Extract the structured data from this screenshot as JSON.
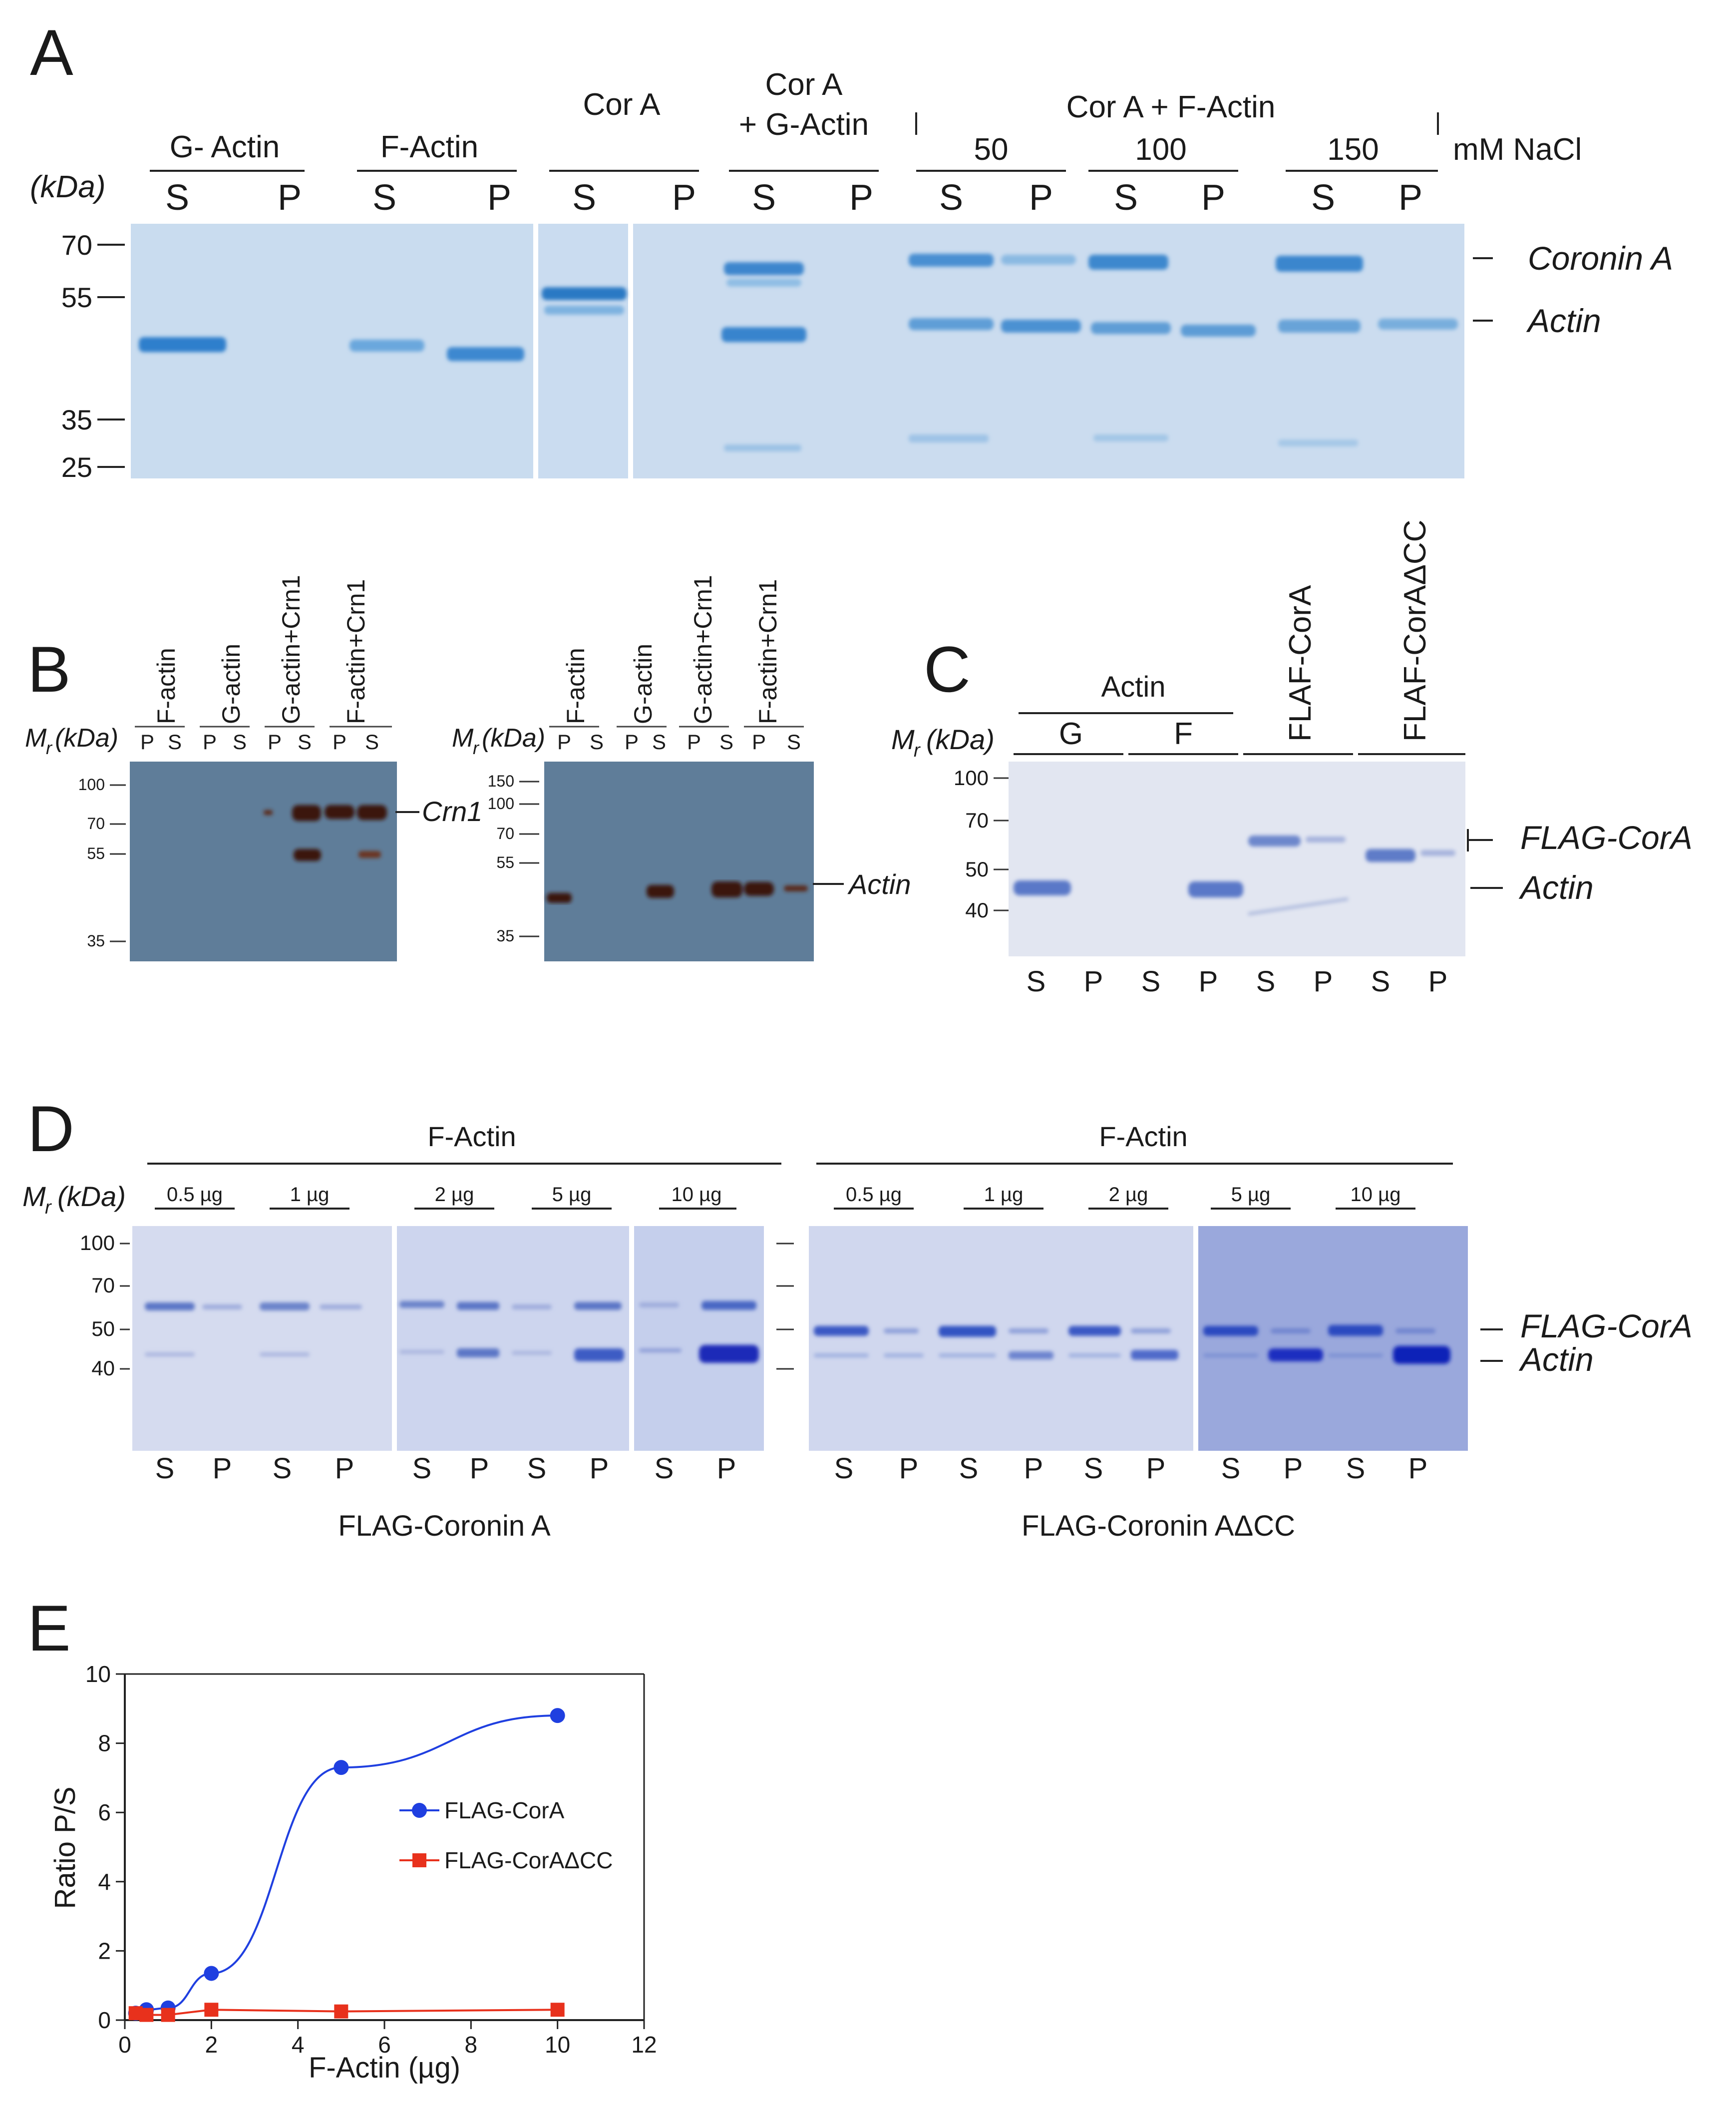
{
  "panel_a": {
    "letter": "A",
    "kda": "(kDa)",
    "groups": [
      "G- Actin",
      "F-Actin",
      "Cor A",
      "Cor A",
      "+ G-Actin",
      "Cor A + F-Actin"
    ],
    "nacl": [
      "50",
      "100",
      "150"
    ],
    "nacl_unit": "mM NaCl",
    "lanes": [
      "S",
      "P",
      "S",
      "P",
      "S",
      "P",
      "S",
      "P",
      "S",
      "P",
      "S",
      "P",
      "S",
      "P"
    ],
    "markers": [
      "70",
      "55",
      "35",
      "25"
    ],
    "bands": [
      "Coronin A",
      "Actin"
    ]
  },
  "panel_b": {
    "letter": "B",
    "mr": "M",
    "mr_sub": "r",
    "mr_unit": "(kDa)",
    "lane_labels": [
      "F-actin",
      "G-actin",
      "G-actin+Crn1",
      "F-actin+Crn1"
    ],
    "lanes": [
      "P",
      "S",
      "P",
      "S",
      "P",
      "S",
      "P",
      "S"
    ],
    "markers_left": [
      "100",
      "70",
      "55",
      "35"
    ],
    "markers_right": [
      "150",
      "100",
      "70",
      "55",
      "35"
    ],
    "band_left": "Crn1",
    "band_right": "Actin"
  },
  "panel_c": {
    "letter": "C",
    "mr": "M",
    "mr_sub": "r",
    "mr_unit": "(kDa)",
    "actin": "Actin",
    "g": "G",
    "f": "F",
    "rotated": [
      "FLAF-CorA",
      "FLAF-CorAΔCC"
    ],
    "markers": [
      "100",
      "70",
      "50",
      "40"
    ],
    "lanes": [
      "S",
      "P",
      "S",
      "P",
      "S",
      "P",
      "S",
      "P"
    ],
    "bands": [
      "FLAG-CorA",
      "Actin"
    ]
  },
  "panel_d": {
    "letter": "D",
    "mr": "M",
    "mr_sub": "r",
    "mr_unit": "(kDa)",
    "factin": "F-Actin",
    "amounts": [
      "0.5 µg",
      "1 µg",
      "2 µg",
      "5 µg",
      "10 µg"
    ],
    "markers": [
      "100",
      "70",
      "50",
      "40"
    ],
    "lanes": [
      "S",
      "P",
      "S",
      "P",
      "S",
      "P",
      "S",
      "P",
      "S",
      "P"
    ],
    "caption_left": "FLAG-Coronin A",
    "caption_right": "FLAG-Coronin AΔCC",
    "bands": [
      "FLAG-CorA",
      "Actin"
    ]
  },
  "panel_e": {
    "letter": "E",
    "chart_data": {
      "type": "line",
      "xlabel": "F-Actin (µg)",
      "ylabel": "Ratio P/S",
      "xlim": [
        0,
        12
      ],
      "ylim": [
        0,
        10
      ],
      "xticks": [
        "0",
        "2",
        "4",
        "6",
        "8",
        "10",
        "12"
      ],
      "yticks": [
        "0",
        "2",
        "4",
        "6",
        "8",
        "10"
      ],
      "legend": "center-right",
      "series": [
        {
          "name": "FLAG-CorA",
          "color": "#1f3fe0",
          "marker": "circle",
          "x": [
            0.25,
            0.5,
            1,
            2,
            5,
            10
          ],
          "y": [
            0.2,
            0.3,
            0.35,
            1.35,
            7.3,
            8.8
          ]
        },
        {
          "name": "FLAG-CorAΔCC",
          "color": "#e8311c",
          "marker": "square",
          "x": [
            0.25,
            0.5,
            1,
            2,
            5,
            10
          ],
          "y": [
            0.2,
            0.15,
            0.15,
            0.3,
            0.25,
            0.3
          ]
        }
      ]
    }
  }
}
